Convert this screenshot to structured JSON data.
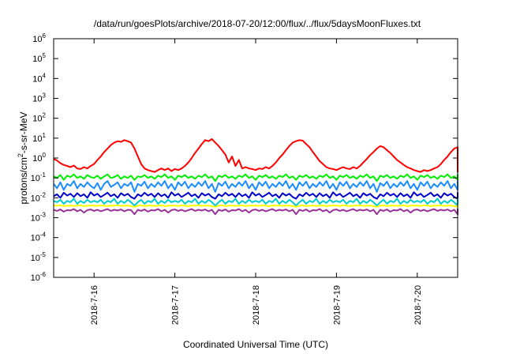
{
  "chart_data": {
    "type": "line",
    "title": "/data/run/goesPlots/archive/2018-07-20/12:00/flux/../flux/5daysMoonFluxes.txt",
    "xlabel": "Coordinated Universal Time (UTC)",
    "ylabel_parts": [
      "protons/cm",
      "2",
      "-s-sr-MeV"
    ],
    "y_scale": "log",
    "ylim": [
      1e-06,
      1000000.0
    ],
    "y_ticks": [
      {
        "value": 1e-06,
        "base": "10",
        "exp": "-6"
      },
      {
        "value": 1e-05,
        "base": "10",
        "exp": "-5"
      },
      {
        "value": 0.0001,
        "base": "10",
        "exp": "-4"
      },
      {
        "value": 0.001,
        "base": "10",
        "exp": "-3"
      },
      {
        "value": 0.01,
        "base": "10",
        "exp": "-2"
      },
      {
        "value": 0.1,
        "base": "10",
        "exp": "-1"
      },
      {
        "value": 1.0,
        "base": "10",
        "exp": "0"
      },
      {
        "value": 10.0,
        "base": "10",
        "exp": "1"
      },
      {
        "value": 100.0,
        "base": "10",
        "exp": "2"
      },
      {
        "value": 1000.0,
        "base": "10",
        "exp": "3"
      },
      {
        "value": 10000.0,
        "base": "10",
        "exp": "4"
      },
      {
        "value": 100000.0,
        "base": "10",
        "exp": "5"
      },
      {
        "value": 1000000.0,
        "base": "10",
        "exp": "6"
      }
    ],
    "xlim": [
      "2018-07-15T12:00",
      "2018-07-20T12:00"
    ],
    "x_ticks": [
      {
        "value": "2018-07-16T00:00",
        "label": "2018-7-16"
      },
      {
        "value": "2018-07-17T00:00",
        "label": "2018-7-17"
      },
      {
        "value": "2018-07-18T00:00",
        "label": "2018-7-18"
      },
      {
        "value": "2018-07-19T00:00",
        "label": "2018-7-19"
      },
      {
        "value": "2018-07-20T00:00",
        "label": "2018-7-20"
      }
    ],
    "grid": false,
    "legend": false,
    "sample_hours": 1,
    "series": [
      {
        "color": "#ff0000",
        "values": [
          0.9,
          0.75,
          0.55,
          0.45,
          0.4,
          0.35,
          0.42,
          0.3,
          0.28,
          0.35,
          0.3,
          0.4,
          0.5,
          0.8,
          1.2,
          2,
          3,
          4.5,
          6,
          7,
          6.5,
          8,
          7,
          6,
          3,
          1.2,
          0.5,
          0.3,
          0.25,
          0.22,
          0.2,
          0.25,
          0.3,
          0.25,
          0.3,
          0.22,
          0.28,
          0.25,
          0.3,
          0.4,
          0.6,
          1,
          1.8,
          3,
          5,
          8,
          7,
          9,
          6,
          4,
          2.5,
          1.5,
          0.6,
          1.2,
          0.4,
          0.8,
          0.3,
          0.35,
          0.3,
          0.28,
          0.25,
          0.3,
          0.28,
          0.35,
          0.3,
          0.4,
          0.6,
          1,
          1.5,
          2.5,
          4,
          6,
          7,
          8,
          7.5,
          5,
          3.5,
          2,
          1.2,
          0.7,
          0.5,
          0.35,
          0.3,
          0.28,
          0.25,
          0.3,
          0.35,
          0.3,
          0.28,
          0.35,
          0.3,
          0.4,
          0.6,
          0.9,
          1.4,
          2,
          3,
          4,
          3.5,
          2.5,
          1.8,
          1.2,
          0.8,
          0.6,
          0.45,
          0.35,
          0.3,
          0.25,
          0.22,
          0.2,
          0.25,
          0.22,
          0.25,
          0.3,
          0.35,
          0.5,
          0.8,
          1.2,
          2,
          3,
          3.5,
          3,
          2.5,
          1.8,
          1.2,
          0.9,
          0.7,
          0.5,
          0.4,
          0.3,
          0.25,
          0.2,
          0.7,
          0.9
        ]
      },
      {
        "color": "#00ee00",
        "values": [
          0.12,
          0.1,
          0.14,
          0.08,
          0.13,
          0.11,
          0.15,
          0.1,
          0.12,
          0.09,
          0.14,
          0.11,
          0.1,
          0.13,
          0.09,
          0.12,
          0.15,
          0.1,
          0.11,
          0.14,
          0.09,
          0.12,
          0.1,
          0.13,
          0.08,
          0.12,
          0.11,
          0.14,
          0.1,
          0.12,
          0.09,
          0.13,
          0.11,
          0.15,
          0.1,
          0.12,
          0.08,
          0.13,
          0.11,
          0.14,
          0.1,
          0.12,
          0.09,
          0.13,
          0.11,
          0.15,
          0.1,
          0.12,
          0.07,
          0.13,
          0.11,
          0.14,
          0.1,
          0.12,
          0.09,
          0.13,
          0.11,
          0.15,
          0.1,
          0.12,
          0.08,
          0.13,
          0.11,
          0.14,
          0.1,
          0.12,
          0.09,
          0.13,
          0.11,
          0.15,
          0.1,
          0.12,
          0.08,
          0.13,
          0.11,
          0.14,
          0.1,
          0.12,
          0.09,
          0.13,
          0.11,
          0.15,
          0.1,
          0.12,
          0.08,
          0.13,
          0.11,
          0.14,
          0.1,
          0.12,
          0.09,
          0.13,
          0.11,
          0.15,
          0.1,
          0.12,
          0.07,
          0.13,
          0.11,
          0.14,
          0.1,
          0.12,
          0.09,
          0.13,
          0.11,
          0.15,
          0.1,
          0.12,
          0.08,
          0.13,
          0.11,
          0.14,
          0.1,
          0.12,
          0.09,
          0.13,
          0.11,
          0.15,
          0.1,
          0.12,
          0.08,
          0.13,
          0.11,
          0.14,
          0.1,
          0.12,
          0.09,
          0.13,
          0.11,
          0.15,
          0.1,
          0.12
        ]
      },
      {
        "color": "#1a8cff",
        "values": [
          0.05,
          0.03,
          0.06,
          0.025,
          0.05,
          0.04,
          0.07,
          0.03,
          0.05,
          0.035,
          0.06,
          0.04,
          0.03,
          0.055,
          0.025,
          0.05,
          0.07,
          0.035,
          0.045,
          0.06,
          0.03,
          0.05,
          0.04,
          0.06,
          0.02,
          0.05,
          0.04,
          0.065,
          0.03,
          0.05,
          0.035,
          0.06,
          0.04,
          0.07,
          0.03,
          0.05,
          0.025,
          0.06,
          0.04,
          0.065,
          0.03,
          0.05,
          0.035,
          0.06,
          0.04,
          0.07,
          0.03,
          0.05,
          0.02,
          0.055,
          0.04,
          0.065,
          0.03,
          0.05,
          0.035,
          0.06,
          0.04,
          0.07,
          0.03,
          0.05,
          0.025,
          0.06,
          0.04,
          0.065,
          0.03,
          0.05,
          0.035,
          0.06,
          0.04,
          0.07,
          0.03,
          0.05,
          0.025,
          0.06,
          0.04,
          0.065,
          0.03,
          0.05,
          0.035,
          0.06,
          0.04,
          0.07,
          0.03,
          0.05,
          0.025,
          0.06,
          0.04,
          0.065,
          0.03,
          0.05,
          0.035,
          0.06,
          0.04,
          0.07,
          0.03,
          0.05,
          0.02,
          0.055,
          0.04,
          0.065,
          0.03,
          0.05,
          0.035,
          0.06,
          0.04,
          0.07,
          0.03,
          0.05,
          0.025,
          0.06,
          0.04,
          0.065,
          0.03,
          0.05,
          0.035,
          0.06,
          0.04,
          0.07,
          0.03,
          0.05,
          0.025,
          0.06,
          0.04,
          0.065,
          0.03,
          0.05,
          0.035,
          0.06,
          0.04,
          0.07,
          0.03,
          0.05
        ]
      },
      {
        "color": "#0000cc",
        "values": [
          0.012,
          0.015,
          0.01,
          0.018,
          0.013,
          0.016,
          0.011,
          0.017,
          0.012,
          0.015,
          0.01,
          0.019,
          0.013,
          0.016,
          0.011,
          0.014,
          0.018,
          0.012,
          0.015,
          0.01,
          0.017,
          0.013,
          0.016,
          0.011,
          0.009,
          0.015,
          0.012,
          0.018,
          0.013,
          0.016,
          0.011,
          0.017,
          0.012,
          0.015,
          0.01,
          0.019,
          0.013,
          0.016,
          0.011,
          0.014,
          0.018,
          0.012,
          0.015,
          0.01,
          0.017,
          0.013,
          0.016,
          0.011,
          0.009,
          0.015,
          0.012,
          0.018,
          0.013,
          0.016,
          0.011,
          0.017,
          0.012,
          0.015,
          0.01,
          0.019,
          0.013,
          0.016,
          0.011,
          0.014,
          0.018,
          0.012,
          0.015,
          0.01,
          0.017,
          0.013,
          0.016,
          0.011,
          0.009,
          0.015,
          0.012,
          0.018,
          0.013,
          0.016,
          0.011,
          0.017,
          0.012,
          0.015,
          0.01,
          0.019,
          0.013,
          0.016,
          0.011,
          0.014,
          0.018,
          0.012,
          0.015,
          0.01,
          0.017,
          0.013,
          0.016,
          0.011,
          0.009,
          0.015,
          0.012,
          0.018,
          0.013,
          0.016,
          0.011,
          0.017,
          0.012,
          0.015,
          0.01,
          0.019,
          0.013,
          0.016,
          0.011,
          0.014,
          0.018,
          0.012,
          0.015,
          0.01,
          0.017,
          0.013,
          0.016,
          0.011,
          0.009,
          0.015,
          0.012,
          0.018,
          0.013,
          0.016,
          0.011,
          0.017,
          0.012,
          0.015
        ]
      },
      {
        "color": "#00cccc",
        "values": [
          0.007,
          0.006,
          0.008,
          0.005,
          0.007,
          0.006,
          0.009,
          0.005,
          0.007,
          0.0055,
          0.008,
          0.006,
          0.007,
          0.006,
          0.008,
          0.005,
          0.007,
          0.006,
          0.009,
          0.005,
          0.007,
          0.0055,
          0.008,
          0.006,
          0.004,
          0.006,
          0.008,
          0.005,
          0.007,
          0.006,
          0.009,
          0.005,
          0.007,
          0.0055,
          0.008,
          0.006,
          0.007,
          0.006,
          0.008,
          0.005,
          0.007,
          0.006,
          0.009,
          0.005,
          0.007,
          0.0055,
          0.008,
          0.006,
          0.004,
          0.006,
          0.008,
          0.005,
          0.007,
          0.006,
          0.009,
          0.005,
          0.007,
          0.0055,
          0.008,
          0.006,
          0.007,
          0.006,
          0.008,
          0.005,
          0.007,
          0.006,
          0.009,
          0.005,
          0.007,
          0.0055,
          0.008,
          0.006,
          0.004,
          0.006,
          0.008,
          0.005,
          0.007,
          0.006,
          0.009,
          0.005,
          0.007,
          0.0055,
          0.008,
          0.006,
          0.007,
          0.006,
          0.008,
          0.005,
          0.007,
          0.006,
          0.009,
          0.005,
          0.007,
          0.0055,
          0.008,
          0.006,
          0.004,
          0.006,
          0.008,
          0.005,
          0.007,
          0.006,
          0.009,
          0.005,
          0.007,
          0.0055,
          0.008,
          0.006,
          0.007,
          0.006,
          0.008,
          0.005,
          0.007,
          0.006,
          0.009,
          0.005,
          0.007,
          0.0055,
          0.008,
          0.006,
          0.004,
          0.006,
          0.008,
          0.005,
          0.007,
          0.006,
          0.009,
          0.005,
          0.007,
          0.0055
        ]
      },
      {
        "color": "#ffff00",
        "values": [
          0.004,
          0.004,
          0.0042,
          0.0038,
          0.004,
          0.0041,
          0.0039,
          0.004,
          0.0042,
          0.0038,
          0.004,
          0.0041,
          0.004,
          0.0039,
          0.0042,
          0.004,
          0.0038,
          0.0041,
          0.004,
          0.0042,
          0.0039,
          0.004,
          0.0041,
          0.0038,
          0.0035,
          0.004,
          0.0042,
          0.0038,
          0.004,
          0.0041,
          0.0039,
          0.004,
          0.0042,
          0.0038,
          0.004,
          0.0041,
          0.004,
          0.0039,
          0.0042,
          0.004,
          0.0038,
          0.0041,
          0.004,
          0.0042,
          0.0039,
          0.004,
          0.0041,
          0.0038,
          0.0035,
          0.004,
          0.0042,
          0.0038,
          0.004,
          0.0041,
          0.0039,
          0.004,
          0.0042,
          0.0038,
          0.004,
          0.0041,
          0.004,
          0.0039,
          0.0042,
          0.004,
          0.0038,
          0.0041,
          0.004,
          0.0042,
          0.0039,
          0.004,
          0.0041,
          0.0038,
          0.0035,
          0.004,
          0.0042,
          0.0038,
          0.004,
          0.0041,
          0.0039,
          0.004,
          0.0042,
          0.0038,
          0.004,
          0.0041,
          0.004,
          0.0039,
          0.0042,
          0.004,
          0.0038,
          0.0041,
          0.004,
          0.0042,
          0.0039,
          0.004,
          0.0041,
          0.0038,
          0.0035,
          0.004,
          0.0042,
          0.0038,
          0.004,
          0.0041,
          0.0039,
          0.004,
          0.0042,
          0.0038,
          0.004,
          0.0041,
          0.004,
          0.0039,
          0.0042,
          0.004,
          0.0038,
          0.0041,
          0.004,
          0.0042,
          0.0039,
          0.004,
          0.0041,
          0.0038,
          0.0035,
          0.004,
          0.0042,
          0.0038,
          0.004,
          0.0041,
          0.0039,
          0.004,
          0.0042,
          0.0038,
          0.004,
          0.0041
        ]
      },
      {
        "color": "#993399",
        "values": [
          0.0025,
          0.0022,
          0.0026,
          0.002,
          0.0024,
          0.0023,
          0.0027,
          0.0021,
          0.0025,
          0.0018,
          0.0024,
          0.0026,
          0.0022,
          0.0025,
          0.0021,
          0.0024,
          0.0027,
          0.0022,
          0.0025,
          0.0023,
          0.0026,
          0.0021,
          0.0025,
          0.0024,
          0.0015,
          0.0025,
          0.0022,
          0.0026,
          0.002,
          0.0024,
          0.0023,
          0.0027,
          0.0021,
          0.0025,
          0.0018,
          0.0024,
          0.0026,
          0.0022,
          0.0025,
          0.0021,
          0.0024,
          0.0027,
          0.0022,
          0.0025,
          0.0023,
          0.0026,
          0.0021,
          0.0025,
          0.0015,
          0.0025,
          0.0022,
          0.0026,
          0.002,
          0.0024,
          0.0023,
          0.0027,
          0.0021,
          0.0025,
          0.0018,
          0.0024,
          0.0026,
          0.0022,
          0.0025,
          0.0021,
          0.0024,
          0.0027,
          0.0022,
          0.0025,
          0.0023,
          0.0026,
          0.0021,
          0.0025,
          0.0015,
          0.0025,
          0.0022,
          0.0026,
          0.002,
          0.0024,
          0.0023,
          0.0027,
          0.0021,
          0.0025,
          0.0018,
          0.0024,
          0.0026,
          0.0022,
          0.0025,
          0.0021,
          0.0024,
          0.0027,
          0.0022,
          0.0025,
          0.0023,
          0.0026,
          0.0021,
          0.0025,
          0.0015,
          0.0025,
          0.0022,
          0.0026,
          0.002,
          0.0024,
          0.0023,
          0.0027,
          0.0021,
          0.0025,
          0.0018,
          0.0024,
          0.0026,
          0.0022,
          0.0025,
          0.0021,
          0.0024,
          0.0027,
          0.0022,
          0.0025,
          0.0023,
          0.0026,
          0.0021,
          0.0025,
          0.0015,
          0.0025,
          0.0022,
          0.0026,
          0.002,
          0.0024,
          0.0023,
          0.0027,
          0.0021,
          0.0025,
          0.0018
        ]
      }
    ]
  }
}
